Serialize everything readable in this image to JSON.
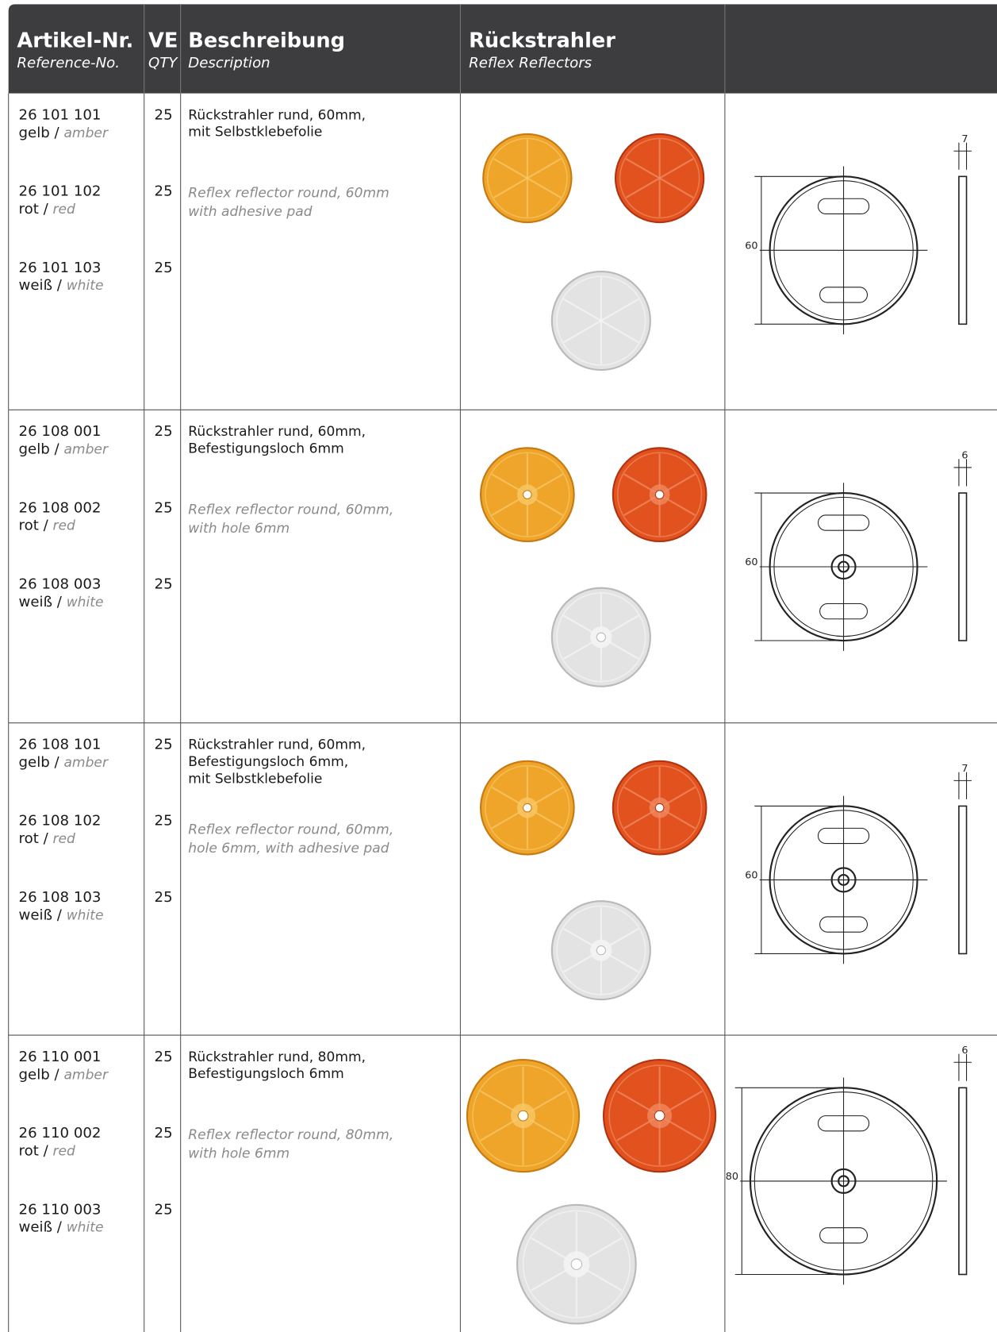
{
  "header": {
    "columns": [
      {
        "title": "Artikel-Nr.",
        "subtitle": "Reference-No."
      },
      {
        "title": "VE",
        "subtitle": "QTY"
      },
      {
        "title": "Beschreibung",
        "subtitle": "Description"
      },
      {
        "title": "Rückstrahler",
        "subtitle": "Reflex Reflectors"
      }
    ]
  },
  "color_separator": " / ",
  "rows": [
    {
      "items": [
        {
          "number": "26 101 101",
          "color_de": "gelb",
          "color_en": "amber",
          "qty": "25"
        },
        {
          "number": "26 101 102",
          "color_de": "rot",
          "color_en": "red",
          "qty": "25"
        },
        {
          "number": "26 101 103",
          "color_de": "weiß",
          "color_en": "white",
          "qty": "25"
        }
      ],
      "desc_de": [
        "Rückstrahler rund, 60mm,",
        "mit Selbstklebefolie"
      ],
      "desc_en": [
        "Reflex reflector round, 60mm",
        "with adhesive pad"
      ],
      "dims": {
        "diameter": "60",
        "thickness": "7"
      }
    },
    {
      "items": [
        {
          "number": "26 108 001",
          "color_de": "gelb",
          "color_en": "amber",
          "qty": "25"
        },
        {
          "number": "26 108 002",
          "color_de": "rot",
          "color_en": "red",
          "qty": "25"
        },
        {
          "number": "26 108 003",
          "color_de": "weiß",
          "color_en": "white",
          "qty": "25"
        }
      ],
      "desc_de": [
        "Rückstrahler rund, 60mm,",
        "Befestigungsloch 6mm"
      ],
      "desc_en": [
        "Reflex reflector round, 60mm,",
        "with hole 6mm"
      ],
      "dims": {
        "diameter": "60",
        "thickness": "6"
      }
    },
    {
      "items": [
        {
          "number": "26 108 101",
          "color_de": "gelb",
          "color_en": "amber",
          "qty": "25"
        },
        {
          "number": "26 108 102",
          "color_de": "rot",
          "color_en": "red",
          "qty": "25"
        },
        {
          "number": "26 108 103",
          "color_de": "weiß",
          "color_en": "white",
          "qty": "25"
        }
      ],
      "desc_de": [
        "Rückstrahler rund, 60mm,",
        "Befestigungsloch 6mm,",
        "mit Selbstklebefolie"
      ],
      "desc_en": [
        "Reflex reflector round, 60mm,",
        "hole 6mm, with adhesive pad"
      ],
      "dims": {
        "diameter": "60",
        "thickness": "7"
      }
    },
    {
      "items": [
        {
          "number": "26 110 001",
          "color_de": "gelb",
          "color_en": "amber",
          "qty": "25"
        },
        {
          "number": "26 110 002",
          "color_de": "rot",
          "color_en": "red",
          "qty": "25"
        },
        {
          "number": "26 110 003",
          "color_de": "weiß",
          "color_en": "white",
          "qty": "25"
        }
      ],
      "desc_de": [
        "Rückstrahler rund, 80mm,",
        "Befestigungsloch 6mm"
      ],
      "desc_en": [
        "Reflex reflector round, 80mm,",
        "with hole 6mm"
      ],
      "dims": {
        "diameter": "80",
        "thickness": "6"
      }
    }
  ]
}
